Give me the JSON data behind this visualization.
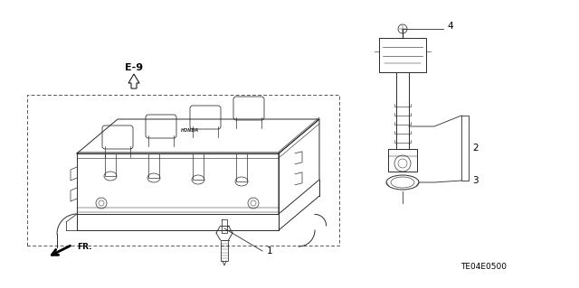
{
  "bg_color": "#ffffff",
  "fig_width": 6.4,
  "fig_height": 3.19,
  "dpi": 100,
  "line_color": "#2a2a2a",
  "label_fontsize": 7.5,
  "ref_fontsize": 8,
  "code_fontsize": 6.5,
  "ref_label": "E-9",
  "code_label": "TE04E0500",
  "lw": 0.7
}
